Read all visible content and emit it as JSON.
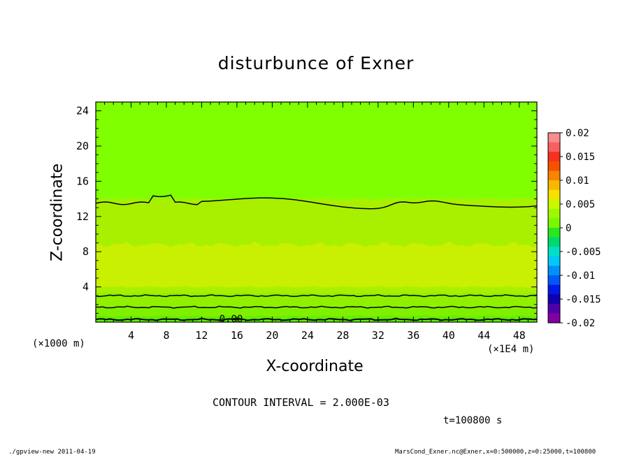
{
  "chart_data": {
    "type": "heatmap",
    "title": "disturbunce of Exner",
    "xlabel": "X-coordinate",
    "ylabel": "Z-coordinate",
    "x_scale_label": "(×1E4 m)",
    "z_scale_label": "(×1000 m)",
    "xlim": [
      0,
      50
    ],
    "ylim": [
      0,
      25
    ],
    "x_ticks": [
      4,
      8,
      12,
      16,
      20,
      24,
      28,
      32,
      36,
      40,
      44,
      48
    ],
    "y_ticks": [
      4,
      8,
      12,
      16,
      20,
      24
    ],
    "colorbar": {
      "labels": [
        "0.02",
        "0.015",
        "0.01",
        "0.005",
        "0",
        "-0.005",
        "-0.01",
        "-0.015",
        "-0.02"
      ],
      "levels": [
        0.02,
        0.015,
        0.01,
        0.005,
        0,
        -0.005,
        -0.01,
        -0.015,
        -0.02
      ],
      "colors": [
        "#f88c8c",
        "#f86060",
        "#f83020",
        "#f85000",
        "#f88400",
        "#f8b800",
        "#f8e000",
        "#c8f800",
        "#a0f800",
        "#78f800",
        "#28e820",
        "#00d870",
        "#00e0c8",
        "#00c8f8",
        "#0090f8",
        "#0058f8",
        "#0018e8",
        "#1000b0",
        "#5000a8",
        "#8000a0"
      ]
    },
    "regions": [
      {
        "z_from": 0,
        "z_to": 0.7,
        "value_band": "0.000 to 0.002",
        "color": "#60f000"
      },
      {
        "z_from": 0.7,
        "z_to": 1.7,
        "value_band": "0.002 to 0.004",
        "color": "#80f000"
      },
      {
        "z_from": 1.7,
        "z_to": 3.3,
        "value_band": "0.002 to 0.004",
        "color": "#90f000"
      },
      {
        "z_from": 3.3,
        "z_to": 4.0,
        "value_band": "0.004 to 0.006",
        "color": "#a8f000"
      },
      {
        "z_from": 4.0,
        "z_to": 8.8,
        "value_band": "0.006 to 0.008",
        "color": "#c8f000"
      },
      {
        "z_from": 8.8,
        "z_to": 14.0,
        "value_band": "0.004 to 0.006",
        "color": "#a8f000"
      },
      {
        "z_from": 14.0,
        "z_to": 25,
        "value_band": "0.002 to 0.004",
        "color": "#80ff00"
      }
    ],
    "contours": [
      {
        "z": 0.3,
        "value": 0.0,
        "label": "0.00"
      },
      {
        "z": 1.7,
        "value": 0.002
      },
      {
        "z": 3.0,
        "value": 0.004
      },
      {
        "z": 13.5,
        "z_peaks": [
          15.0
        ],
        "value": 0.002
      }
    ],
    "contour_interval": "CONTOUR INTERVAL = 2.000E-03",
    "time": "t=100800 s"
  },
  "footer": {
    "left": "./gpview-new  2011-04-19",
    "right": "MarsCond_Exner.nc@Exner,x=0:500000,z=0:25000,t=100800"
  }
}
